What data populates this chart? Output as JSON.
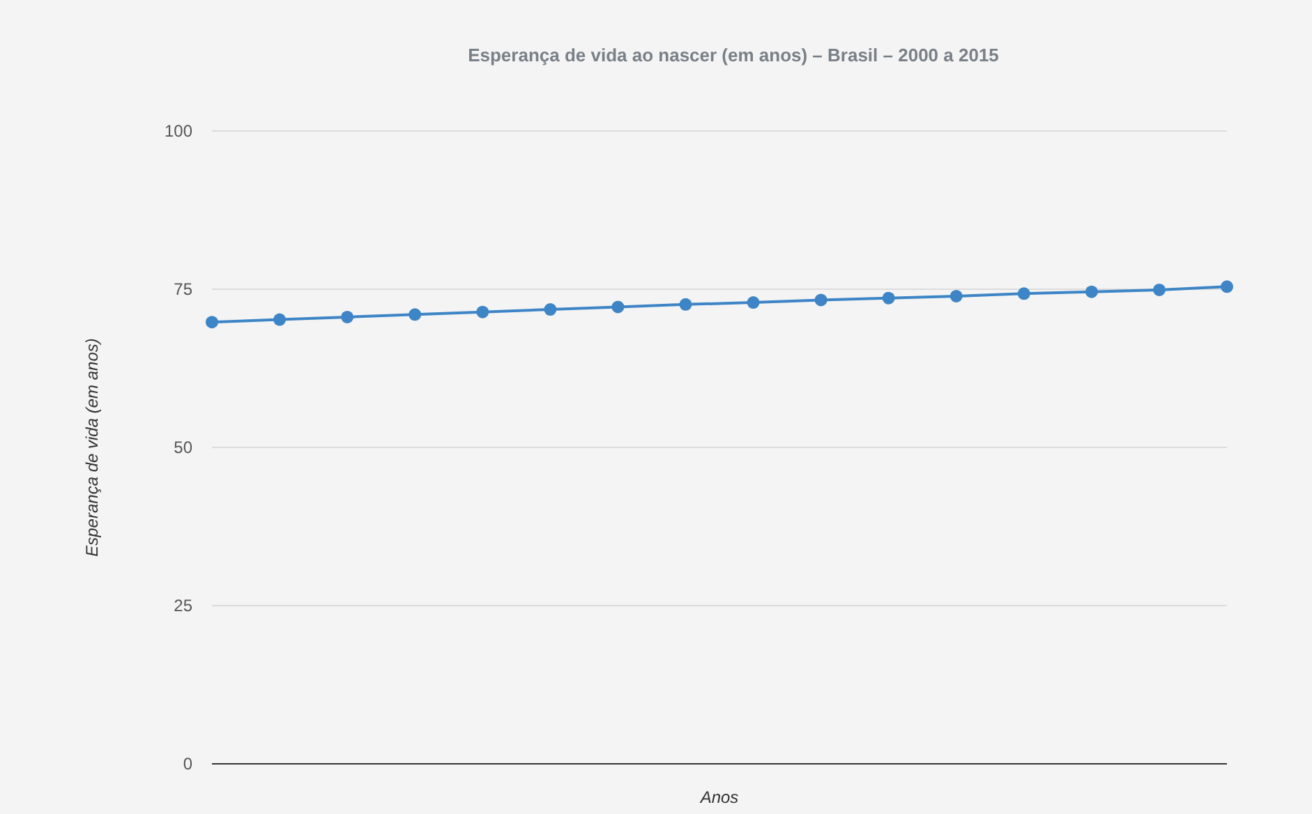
{
  "chart_data": {
    "type": "line",
    "title": "Esperança de vida ao nascer (em anos) – Brasil – 2000 a 2015",
    "xlabel": "Anos",
    "ylabel": "Esperança de vida (em anos)",
    "categories": [
      null,
      null,
      null,
      null,
      null,
      null,
      null,
      null,
      null,
      null,
      null,
      null,
      null,
      null,
      null,
      null
    ],
    "series": [
      {
        "color": "#3d85c6",
        "values": [
          69.8,
          70.2,
          70.6,
          71.0,
          71.4,
          71.8,
          72.2,
          72.6,
          72.9,
          73.3,
          73.6,
          73.9,
          74.3,
          74.6,
          74.9,
          75.4
        ]
      }
    ],
    "ylim": [
      0,
      100
    ],
    "yticks": [
      0,
      25,
      50,
      75,
      100
    ],
    "grid": "y",
    "marker": "circle"
  }
}
